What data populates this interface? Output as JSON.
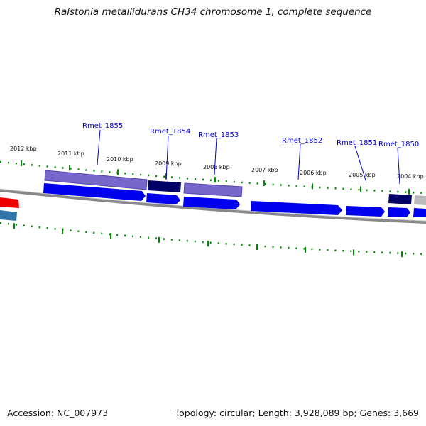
{
  "title": "Ralstonia metallidurans CH34 chromosome 1, complete sequence",
  "footer": {
    "accession": "Accession: NC_007973",
    "summary": "Topology: circular; Length: 3,928,089 bp; Genes: 3,669"
  },
  "colors": {
    "gene_blue": "#0000ee",
    "gene_navy": "#000066",
    "gene_purple": "#7766cc",
    "gene_gray": "#bbbbbb",
    "gene_red": "#ee0000",
    "gene_steel": "#3377aa",
    "backbone": "#888888",
    "tick_green": "#008800",
    "label_blue": "#0000cc"
  },
  "kbp_labels": [
    "2012 kbp",
    "2011 kbp",
    "2010 kbp",
    "2009 kbp",
    "2008 kbp",
    "2007 kbp",
    "2006 kbp",
    "2005 kbp",
    "2004 kbp"
  ],
  "gene_labels": [
    "Rmet_1855",
    "Rmet_1854",
    "Rmet_1853",
    "Rmet_1852",
    "Rmet_1851",
    "Rmet_1850"
  ]
}
